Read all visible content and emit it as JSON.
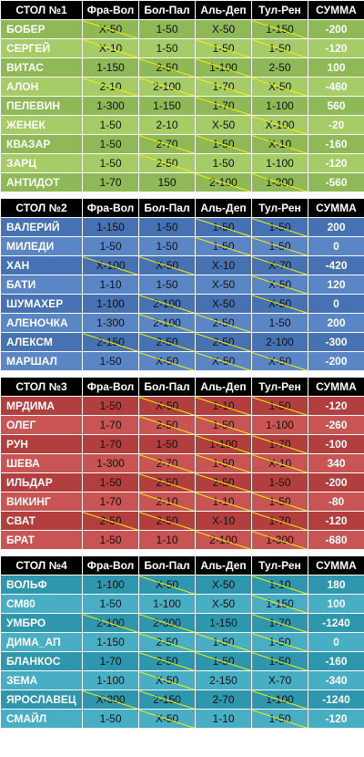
{
  "columns": [
    "Фра-Вол",
    "Бол-Пал",
    "Аль-Деп",
    "Тул-Рен",
    "СУММА"
  ],
  "tables": [
    {
      "title": "СТОЛ №1",
      "colors": {
        "row": "#8fb857",
        "alt": "#a6cc68"
      },
      "rows": [
        {
          "name": "БОБЕР",
          "cells": [
            "X-50",
            "1-50",
            "X-50",
            "1-150"
          ],
          "strike": [
            true,
            false,
            false,
            true
          ],
          "sum": "-200"
        },
        {
          "name": "СЕРГЕЙ",
          "cells": [
            "X-10",
            "1-50",
            "1-50",
            "1-50"
          ],
          "strike": [
            true,
            false,
            true,
            true
          ],
          "sum": "-120"
        },
        {
          "name": "ВИТАС",
          "cells": [
            "1-150",
            "2-50",
            "1-100",
            "2-50"
          ],
          "strike": [
            false,
            true,
            true,
            false
          ],
          "sum": "100"
        },
        {
          "name": "АЛОН",
          "cells": [
            "2-10",
            "2-100",
            "1-70",
            "X-50"
          ],
          "strike": [
            true,
            true,
            true,
            true
          ],
          "sum": "-460"
        },
        {
          "name": "ПЕЛЕВИН",
          "cells": [
            "1-300",
            "1-150",
            "1-70",
            "1-100"
          ],
          "strike": [
            false,
            false,
            true,
            false
          ],
          "sum": "560"
        },
        {
          "name": "ЖЕНЕК",
          "cells": [
            "1-50",
            "2-10",
            "X-50",
            "X-100"
          ],
          "strike": [
            false,
            false,
            false,
            true
          ],
          "sum": "-20"
        },
        {
          "name": "КВАЗАР",
          "cells": [
            "1-50",
            "2-70",
            "1-50",
            "X-10"
          ],
          "strike": [
            false,
            true,
            true,
            true
          ],
          "sum": "-160"
        },
        {
          "name": "ЗАРЦ",
          "cells": [
            "1-50",
            "2-50",
            "1-50",
            "1-100"
          ],
          "strike": [
            false,
            true,
            false,
            false
          ],
          "sum": "-120"
        },
        {
          "name": "АНТИДОТ",
          "cells": [
            "1-70",
            "150",
            "2-100",
            "1-300"
          ],
          "strike": [
            false,
            false,
            true,
            true
          ],
          "sum": "-560"
        }
      ]
    },
    {
      "title": "СТОЛ №2",
      "colors": {
        "row": "#4671b2",
        "alt": "#5b86c6"
      },
      "rows": [
        {
          "name": "ВАЛЕРИЙ",
          "cells": [
            "1-150",
            "1-50",
            "1-50",
            "1-50"
          ],
          "strike": [
            false,
            false,
            true,
            true
          ],
          "sum": "200"
        },
        {
          "name": "МИЛЕДИ",
          "cells": [
            "1-50",
            "1-50",
            "1-50",
            "1-50"
          ],
          "strike": [
            false,
            false,
            true,
            true
          ],
          "sum": "0"
        },
        {
          "name": "ХАН",
          "cells": [
            "X-100",
            "X-50",
            "X-10",
            "X-70"
          ],
          "strike": [
            true,
            true,
            false,
            true
          ],
          "sum": "-420"
        },
        {
          "name": "БАТИ",
          "cells": [
            "1-10",
            "1-50",
            "X-50",
            "X-50"
          ],
          "strike": [
            false,
            false,
            false,
            true
          ],
          "sum": "120"
        },
        {
          "name": "ШУМАХЕР",
          "cells": [
            "1-100",
            "2-100",
            "X-50",
            "X-50"
          ],
          "strike": [
            false,
            true,
            false,
            true
          ],
          "sum": "0"
        },
        {
          "name": "АЛЕНОЧКА",
          "cells": [
            "1-300",
            "2-100",
            "2-50",
            "1-50"
          ],
          "strike": [
            false,
            true,
            true,
            false
          ],
          "sum": "200"
        },
        {
          "name": "АЛЕКСМ",
          "cells": [
            "2-150",
            "2-50",
            "2-50",
            "2-100"
          ],
          "strike": [
            true,
            true,
            true,
            false
          ],
          "sum": "-300"
        },
        {
          "name": "МАРШАЛ",
          "cells": [
            "1-50",
            "X-50",
            "X-50",
            "X-50"
          ],
          "strike": [
            false,
            true,
            true,
            true
          ],
          "sum": "-200"
        }
      ]
    },
    {
      "title": "СТОЛ №3",
      "colors": {
        "row": "#b23e3e",
        "alt": "#c85454"
      },
      "rows": [
        {
          "name": "МРДИМА",
          "cells": [
            "1-50",
            "X-50",
            "1-10",
            "1-50"
          ],
          "strike": [
            false,
            true,
            true,
            true
          ],
          "sum": "-120"
        },
        {
          "name": "ОЛЕГ",
          "cells": [
            "1-70",
            "2-50",
            "1-50",
            "1-100"
          ],
          "strike": [
            false,
            true,
            true,
            false
          ],
          "sum": "-260"
        },
        {
          "name": "РУН",
          "cells": [
            "1-70",
            "1-50",
            "1-100",
            "1-70"
          ],
          "strike": [
            false,
            false,
            true,
            true
          ],
          "sum": "-100"
        },
        {
          "name": "ШЕВА",
          "cells": [
            "1-300",
            "2-70",
            "1-50",
            "X-10"
          ],
          "strike": [
            false,
            true,
            true,
            true
          ],
          "sum": "340"
        },
        {
          "name": "ИЛЬДАР",
          "cells": [
            "1-50",
            "2-50",
            "2-50",
            "1-50"
          ],
          "strike": [
            false,
            true,
            true,
            false
          ],
          "sum": "-200"
        },
        {
          "name": "ВИКИНГ",
          "cells": [
            "1-70",
            "2-10",
            "1-10",
            "1-50"
          ],
          "strike": [
            false,
            true,
            true,
            true
          ],
          "sum": "-80"
        },
        {
          "name": "СВАТ",
          "cells": [
            "2-50",
            "2-50",
            "X-10",
            "1-70"
          ],
          "strike": [
            true,
            true,
            false,
            true
          ],
          "sum": "-120"
        },
        {
          "name": "БРАТ",
          "cells": [
            "1-50",
            "1-10",
            "2-100",
            "1-300"
          ],
          "strike": [
            false,
            false,
            true,
            true
          ],
          "sum": "-680"
        }
      ]
    },
    {
      "title": "СТОЛ №4",
      "colors": {
        "row": "#2e96ad",
        "alt": "#47aec4"
      },
      "rows": [
        {
          "name": "ВОЛЬФ",
          "cells": [
            "1-100",
            "X-50",
            "X-50",
            "1-10"
          ],
          "strike": [
            false,
            true,
            false,
            true
          ],
          "sum": "180"
        },
        {
          "name": "СМ80",
          "cells": [
            "1-50",
            "1-100",
            "X-50",
            "1-150"
          ],
          "strike": [
            false,
            false,
            false,
            true
          ],
          "sum": "100"
        },
        {
          "name": "УМБРО",
          "cells": [
            "2-100",
            "2-300",
            "1-150",
            "1-70"
          ],
          "strike": [
            true,
            true,
            false,
            true
          ],
          "sum": "-1240"
        },
        {
          "name": "ДИМА_АП",
          "cells": [
            "1-150",
            "2-50",
            "1-50",
            "1-50"
          ],
          "strike": [
            false,
            true,
            true,
            true
          ],
          "sum": "0"
        },
        {
          "name": "БЛАНКОС",
          "cells": [
            "1-70",
            "2-50",
            "1-50",
            "1-50"
          ],
          "strike": [
            false,
            true,
            true,
            true
          ],
          "sum": "-160"
        },
        {
          "name": "ЗЕМА",
          "cells": [
            "1-100",
            "X-50",
            "2-150",
            "X-70"
          ],
          "strike": [
            false,
            true,
            false,
            false
          ],
          "sum": "-340"
        },
        {
          "name": "ЯРОСЛАВЕЦ",
          "cells": [
            "X-300",
            "2-150",
            "2-70",
            "1-100"
          ],
          "strike": [
            true,
            true,
            false,
            true
          ],
          "sum": "-1240"
        },
        {
          "name": "СМАЙЛ",
          "cells": [
            "1-50",
            "X-50",
            "1-10",
            "1-50"
          ],
          "strike": [
            false,
            true,
            false,
            true
          ],
          "sum": "-120"
        }
      ]
    }
  ]
}
